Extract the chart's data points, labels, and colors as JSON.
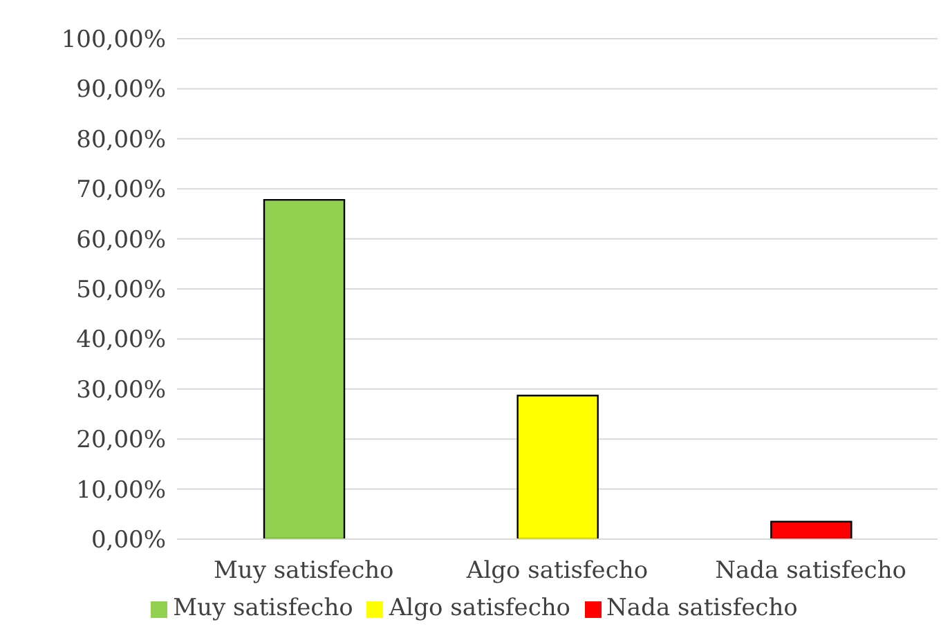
{
  "chart_data": {
    "type": "bar",
    "categories": [
      "Muy satisfecho",
      "Algo satisfecho",
      "Nada satisfecho"
    ],
    "series": [
      {
        "name": "Muy satisfecho",
        "color": "#92d050",
        "values": [
          67.8,
          null,
          null
        ]
      },
      {
        "name": "Algo satisfecho",
        "color": "#ffff00",
        "values": [
          null,
          28.7,
          null
        ]
      },
      {
        "name": "Nada satisfecho",
        "color": "#ff0000",
        "values": [
          null,
          null,
          3.5
        ]
      }
    ],
    "ylim": [
      0,
      100
    ],
    "yticks": [
      {
        "value": 0,
        "label": "0,00%"
      },
      {
        "value": 10,
        "label": "10,00%"
      },
      {
        "value": 20,
        "label": "20,00%"
      },
      {
        "value": 30,
        "label": "30,00%"
      },
      {
        "value": 40,
        "label": "40,00%"
      },
      {
        "value": 50,
        "label": "50,00%"
      },
      {
        "value": 60,
        "label": "60,00%"
      },
      {
        "value": 70,
        "label": "70,00%"
      },
      {
        "value": 80,
        "label": "80,00%"
      },
      {
        "value": 90,
        "label": "90,00%"
      },
      {
        "value": 100,
        "label": "100,00%"
      }
    ],
    "grid": "y",
    "legend": "bottom"
  }
}
